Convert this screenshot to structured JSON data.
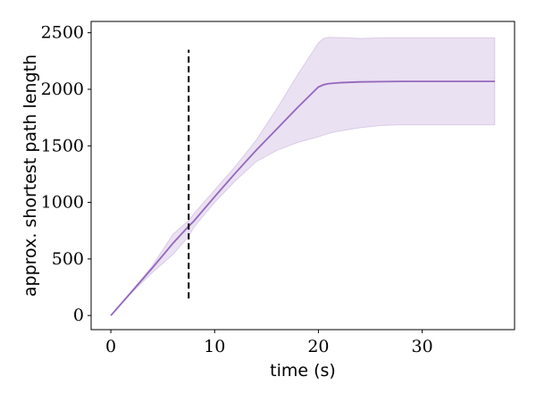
{
  "chart_data": {
    "type": "line",
    "title": "",
    "xlabel": "time (s)",
    "ylabel": "approx. shortest path length",
    "xlim": [
      -1.9,
      38.9
    ],
    "ylim": [
      -125,
      2600
    ],
    "xticks": [
      0,
      10,
      20,
      30
    ],
    "xtick_labels": [
      "0",
      "10",
      "20",
      "30"
    ],
    "yticks": [
      0,
      500,
      1000,
      1500,
      2000,
      2500
    ],
    "ytick_labels": [
      "0",
      "500",
      "1000",
      "1500",
      "2000",
      "2500"
    ],
    "grid": false,
    "legend": "none",
    "series": [
      {
        "color": "#9467bd",
        "x": [
          0,
          2,
          4,
          6,
          7.5,
          8,
          10,
          12,
          14,
          16,
          18,
          20,
          20.5,
          21,
          22,
          24,
          26,
          28,
          30,
          32,
          34,
          37
        ],
        "y": [
          0,
          210,
          420,
          640,
          790,
          835,
          1050,
          1260,
          1460,
          1650,
          1840,
          2020,
          2040,
          2050,
          2058,
          2065,
          2068,
          2070,
          2070,
          2070,
          2070,
          2070
        ],
        "band_lower": [
          0,
          200,
          380,
          540,
          700,
          780,
          1000,
          1190,
          1360,
          1460,
          1530,
          1580,
          1595,
          1610,
          1630,
          1660,
          1680,
          1685,
          1685,
          1685,
          1685,
          1685
        ],
        "band_upper": [
          0,
          215,
          440,
          720,
          840,
          900,
          1110,
          1320,
          1550,
          1830,
          2130,
          2410,
          2450,
          2460,
          2458,
          2450,
          2455,
          2455,
          2455,
          2455,
          2455,
          2455
        ]
      }
    ],
    "annotations": [
      {
        "type": "vertical-dashed-line",
        "x": 7.5,
        "y_from": 150,
        "y_to": 2350,
        "color": "#000000"
      }
    ]
  }
}
